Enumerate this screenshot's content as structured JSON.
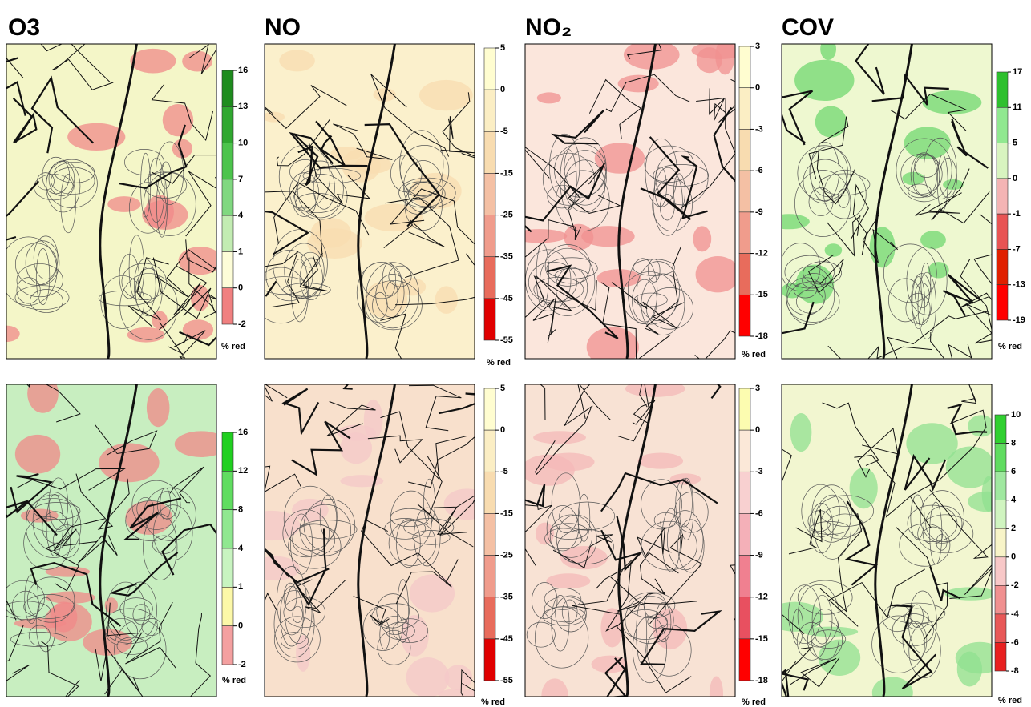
{
  "columns": [
    {
      "title": "O3"
    },
    {
      "title": "NO"
    },
    {
      "title": "NO₂"
    },
    {
      "title": "COV"
    }
  ],
  "panels": [
    {
      "map_color": "#f4f6c8",
      "accent_color": "#f08a8a",
      "colorbar": {
        "ticks": [
          16,
          13,
          10,
          7,
          4,
          1,
          0,
          -2
        ],
        "colors": [
          "#1e8c1e",
          "#30a830",
          "#4cc44c",
          "#80d880",
          "#c2ecb2",
          "#fdfdd8",
          "#f08080"
        ],
        "unit": "% red"
      }
    },
    {
      "map_color": "#fbf0cc",
      "accent_color": "#f8dcb0",
      "colorbar": {
        "ticks": [
          5,
          0,
          -5,
          -15,
          -25,
          -35,
          -45,
          -55
        ],
        "colors": [
          "#fffdd0",
          "#fbeec4",
          "#f8dcb0",
          "#f4c0a4",
          "#f09c8c",
          "#e86c5c",
          "#e00000"
        ],
        "unit": "% red"
      }
    },
    {
      "map_color": "#fbe6dc",
      "accent_color": "#f09090",
      "colorbar": {
        "ticks": [
          3,
          0,
          -3,
          -6,
          -9,
          -12,
          -15,
          -18
        ],
        "colors": [
          "#fffdd0",
          "#fbeec4",
          "#f8dcb0",
          "#f4c0a4",
          "#f09c8c",
          "#e86c5c",
          "#ff0000"
        ],
        "unit": "% red"
      }
    },
    {
      "map_color": "#eef8d0",
      "accent_color": "#70d870",
      "colorbar": {
        "ticks": [
          17,
          11,
          5,
          0,
          -1,
          -7,
          -13,
          -19
        ],
        "colors": [
          "#2ec02e",
          "#90e890",
          "#d8f4c0",
          "#f4b4b4",
          "#e85454",
          "#e02000",
          "#ff0000"
        ],
        "unit": "% red"
      }
    },
    {
      "map_color": "#c8eec0",
      "accent_color": "#f08888",
      "colorbar": {
        "ticks": [
          16,
          12,
          8,
          4,
          1,
          0,
          -2
        ],
        "colors": [
          "#20d020",
          "#60dd60",
          "#90e890",
          "#c8f4c0",
          "#fcf8a8",
          "#f4a0a0"
        ],
        "unit": "% red"
      }
    },
    {
      "map_color": "#f8e0cc",
      "accent_color": "#f4c8c8",
      "colorbar": {
        "ticks": [
          5,
          0,
          -5,
          -15,
          -25,
          -35,
          -45,
          -55
        ],
        "colors": [
          "#fffdd0",
          "#fbeec4",
          "#f8dcb0",
          "#f4c0a4",
          "#f09c8c",
          "#e86c5c",
          "#e00000"
        ],
        "unit": "% red"
      }
    },
    {
      "map_color": "#f8e2d4",
      "accent_color": "#f4b8b8",
      "colorbar": {
        "ticks": [
          3,
          0,
          -3,
          -6,
          -9,
          -12,
          -15,
          -18
        ],
        "colors": [
          "#fcfcb0",
          "#fbe8d8",
          "#f8d0d0",
          "#f4b0b8",
          "#f08090",
          "#e85060",
          "#ff0000"
        ],
        "unit": "% red"
      }
    },
    {
      "map_color": "#f2f6d0",
      "accent_color": "#90e090",
      "colorbar": {
        "ticks": [
          10,
          8,
          6,
          4,
          2,
          0,
          -2,
          -4,
          -6,
          -8
        ],
        "colors": [
          "#30d030",
          "#60dc60",
          "#a0e8a0",
          "#d0f4c0",
          "#f8f4c8",
          "#f8c8c8",
          "#f09090",
          "#e85858",
          "#e82020"
        ],
        "unit": "% red"
      }
    }
  ]
}
